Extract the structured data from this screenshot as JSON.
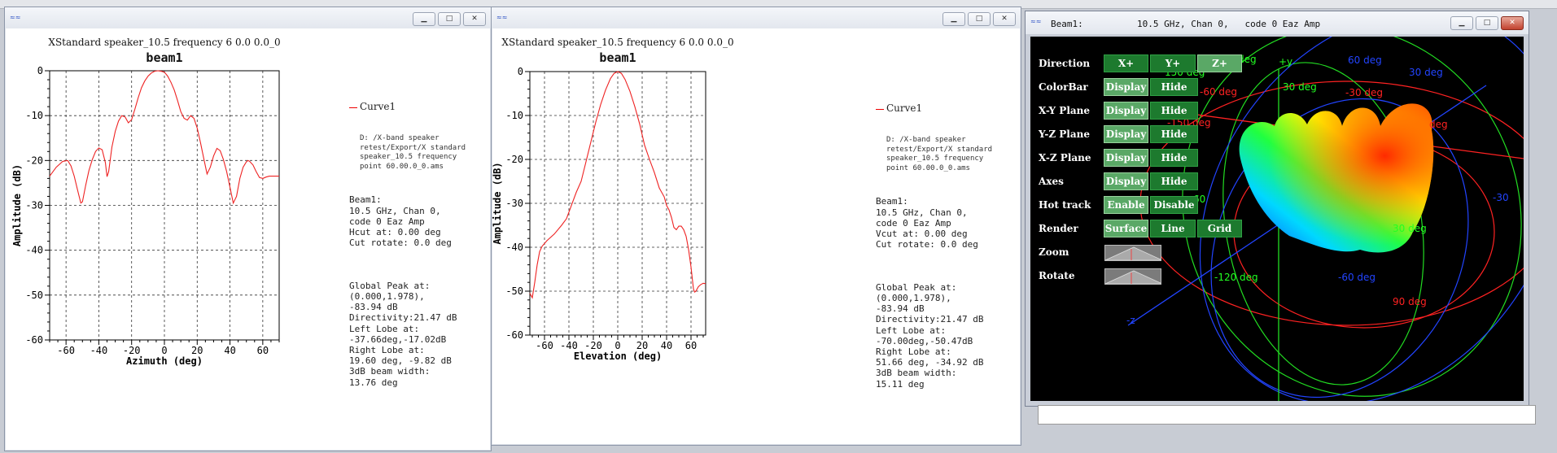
{
  "windows": [
    {
      "id": "left",
      "window_title": "XStandard speaker_10.5 frequency 6 0.0 0.0_0",
      "plot_title": "beam1",
      "legend": {
        "series_name": "Curve1",
        "file_path": "D: /X-band speaker\nretest/Export/X standard\nspeaker_10.5 frequency\npoint 60.00.0_0.ams",
        "info": "Beam1:\n10.5 GHz, Chan 0,\ncode 0 Eaz Amp\nHcut at: 0.00 deg\nCut rotate: 0.0 deg",
        "stats": "Global Peak at:\n(0.000,1.978),\n-83.94 dB\nDirectivity:21.47 dB\nLeft Lobe at:\n-37.66deg,-17.02dB\nRight Lobe at:\n19.60 deg, -9.82 dB\n3dB beam width:\n13.76 deg"
      }
    },
    {
      "id": "right",
      "window_title": "XStandard speaker_10.5 frequency 6 0.0 0.0_0",
      "plot_title": "beam1",
      "legend": {
        "series_name": "Curve1",
        "file_path": "D: /X-band speaker\nretest/Export/X standard\nspeaker_10.5 frequency\npoint 60.00.0_0.ams",
        "info": "Beam1:\n10.5 GHz, Chan 0,\ncode 0 Eaz Amp\nVcut at: 0.00 deg\nCut rotate: 0.0 deg",
        "stats": "Global Peak at:\n(0.000,1.978),\n-83.94 dB\nDirectivity:21.47 dB\nLeft Lobe at:\n-70.00deg,-50.47dB\nRight Lobe at:\n51.66 deg, -34.92 dB\n3dB beam width:\n15.11 deg"
      }
    }
  ],
  "chart_data": [
    {
      "type": "line",
      "title": "beam1",
      "xlabel": "Azimuth (deg)",
      "ylabel": "Amplitude (dB)",
      "xlim": [
        -70,
        70
      ],
      "ylim": [
        -60,
        0
      ],
      "xticks": [
        -60,
        -40,
        -20,
        0,
        20,
        40,
        60
      ],
      "yticks": [
        0,
        -10,
        -20,
        -30,
        -40,
        -50,
        -60
      ],
      "grid": true,
      "legend": "right",
      "series": [
        {
          "name": "Curve1",
          "color": "#ee2222",
          "x": [
            -70,
            -66,
            -62,
            -59,
            -57,
            -55,
            -53,
            -51,
            -50,
            -48,
            -46,
            -44,
            -42,
            -40,
            -38,
            -36,
            -35,
            -34,
            -32,
            -30,
            -28,
            -26,
            -24,
            -22,
            -20,
            -18,
            -16,
            -14,
            -12,
            -10,
            -8,
            -6,
            -4,
            -2,
            0,
            2,
            4,
            6,
            8,
            10,
            12,
            14,
            16,
            18,
            20,
            22,
            24,
            26,
            28,
            30,
            32,
            34,
            36,
            38,
            40,
            42,
            44,
            46,
            48,
            50,
            51,
            52,
            54,
            56,
            58,
            60,
            62,
            64,
            66,
            68,
            70
          ],
          "y": [
            -23.5,
            -21.5,
            -20.2,
            -20.0,
            -21.2,
            -23.5,
            -26.5,
            -29.5,
            -29.2,
            -25.5,
            -22.2,
            -19.8,
            -18.0,
            -17.2,
            -17.6,
            -20.5,
            -23.6,
            -22.5,
            -17.0,
            -13.5,
            -11.2,
            -10.0,
            -10.3,
            -11.6,
            -10.9,
            -8.6,
            -6.0,
            -3.8,
            -2.3,
            -1.2,
            -0.5,
            -0.1,
            0,
            -0.1,
            -0.3,
            -1.2,
            -2.6,
            -4.3,
            -6.6,
            -9.1,
            -10.6,
            -11.0,
            -10.0,
            -10.6,
            -12.8,
            -16.0,
            -19.5,
            -23.0,
            -21.5,
            -19.0,
            -17.3,
            -17.8,
            -19.8,
            -22.5,
            -26.0,
            -29.5,
            -28.0,
            -24.0,
            -21.5,
            -20.3,
            -20.0,
            -20.2,
            -21.0,
            -22.5,
            -23.8,
            -24.0,
            -23.7,
            -23.5,
            -23.5,
            -23.5,
            -23.5
          ]
        }
      ]
    },
    {
      "type": "line",
      "title": "beam1",
      "xlabel": "Elevation (deg)",
      "ylabel": "Amplitude (dB)",
      "xlim": [
        -72,
        72
      ],
      "ylim": [
        -60,
        0
      ],
      "xticks": [
        -60,
        -40,
        -20,
        0,
        20,
        40,
        60
      ],
      "yticks": [
        0,
        -10,
        -20,
        -30,
        -40,
        -50,
        -60
      ],
      "grid": true,
      "legend": "right",
      "series": [
        {
          "name": "Curve1",
          "color": "#ee2222",
          "x": [
            -72,
            -70,
            -68,
            -66,
            -64,
            -62,
            -58,
            -52,
            -46,
            -42,
            -38,
            -34,
            -30,
            -26,
            -22,
            -18,
            -14,
            -10,
            -6,
            -3,
            0,
            3,
            6,
            10,
            14,
            18,
            22,
            26,
            30,
            34,
            38,
            40,
            42,
            44,
            46,
            48,
            50,
            52,
            54,
            56,
            58,
            60,
            62,
            63,
            64,
            66,
            68,
            70,
            72
          ],
          "y": [
            -50.5,
            -51.5,
            -48.0,
            -44.0,
            -41.0,
            -39.8,
            -38.5,
            -37.0,
            -35.0,
            -33.5,
            -30.5,
            -27.5,
            -25.0,
            -20.5,
            -16.0,
            -11.5,
            -7.5,
            -4.2,
            -1.6,
            -0.4,
            0,
            -0.4,
            -1.8,
            -4.5,
            -8.0,
            -12.0,
            -16.8,
            -20.0,
            -23.0,
            -26.5,
            -28.5,
            -30.5,
            -31.5,
            -33.2,
            -35.5,
            -36.0,
            -35.2,
            -35.2,
            -36.0,
            -37.5,
            -40.5,
            -44.5,
            -49.5,
            -50.2,
            -50.0,
            -49.0,
            -48.5,
            -48.2,
            -48.3
          ]
        }
      ]
    }
  ],
  "viewer3d": {
    "title": "Beam1:",
    "subtitle": "10.5 GHz, Chan 0,",
    "subtitle2": "code 0 Eaz Amp",
    "rows": [
      {
        "label": "Direction",
        "buttons": [
          {
            "text": "X+",
            "active": false
          },
          {
            "text": "Y+",
            "active": false
          },
          {
            "text": "Z+",
            "active": true
          }
        ]
      },
      {
        "label": "ColorBar",
        "buttons": [
          {
            "text": "Display",
            "active": true
          },
          {
            "text": "Hide",
            "active": false
          }
        ]
      },
      {
        "label": "X-Y Plane",
        "buttons": [
          {
            "text": "Display",
            "active": true
          },
          {
            "text": "Hide",
            "active": false
          }
        ]
      },
      {
        "label": "Y-Z Plane",
        "buttons": [
          {
            "text": "Display",
            "active": true
          },
          {
            "text": "Hide",
            "active": false
          }
        ]
      },
      {
        "label": "X-Z Plane",
        "buttons": [
          {
            "text": "Display",
            "active": true
          },
          {
            "text": "Hide",
            "active": false
          }
        ]
      },
      {
        "label": "Axes",
        "buttons": [
          {
            "text": "Display",
            "active": true
          },
          {
            "text": "Hide",
            "active": false
          }
        ]
      },
      {
        "label": "Hot track",
        "buttons": [
          {
            "text": "Enable",
            "active": true
          },
          {
            "text": "Disable",
            "active": false
          }
        ]
      },
      {
        "label": "Render",
        "buttons": [
          {
            "text": "Surface",
            "active": true
          },
          {
            "text": "Line",
            "active": false
          },
          {
            "text": "Grid",
            "active": false
          }
        ]
      },
      {
        "label": "Zoom",
        "slider": true
      },
      {
        "label": "Rotate",
        "slider": true
      }
    ],
    "scene_labels": [
      {
        "text": "+y",
        "color": "#22ff22"
      },
      {
        "text": "deg",
        "color": "#22ff22"
      },
      {
        "text": "150 deg",
        "color": "#22ff22"
      },
      {
        "text": "30 deg",
        "color": "#22ff22"
      },
      {
        "text": "-60 deg",
        "color": "#ff2222"
      },
      {
        "text": "-30 deg",
        "color": "#ff2222"
      },
      {
        "text": "60 deg",
        "color": "#2244ff"
      },
      {
        "text": "30 deg",
        "color": "#2244ff"
      },
      {
        "text": "-150 deg",
        "color": "#ff2222"
      },
      {
        "text": "deg",
        "color": "#ff2222"
      },
      {
        "text": "-30",
        "color": "#2244ff"
      },
      {
        "text": "-120 deg",
        "color": "#22ff22"
      },
      {
        "text": "-60 deg",
        "color": "#2244ff"
      },
      {
        "text": "60",
        "color": "#22ff22"
      },
      {
        "text": "30 deg",
        "color": "#22ff22"
      },
      {
        "text": "90 deg",
        "color": "#ff2222"
      },
      {
        "text": "-z",
        "color": "#2244ff"
      }
    ]
  }
}
